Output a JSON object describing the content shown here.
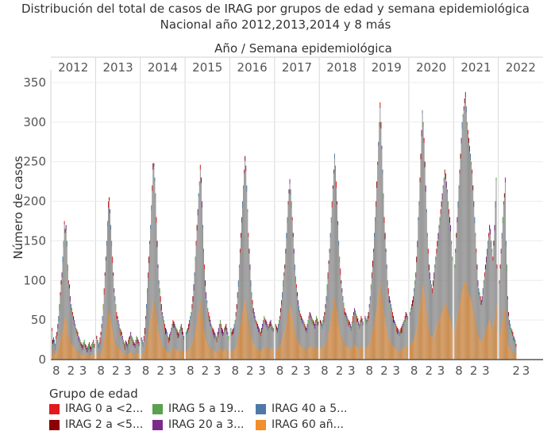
{
  "title_line1": "Distribución del total de casos de IRAG por grupos de edad y semana epidemiológica",
  "title_line2": "Nacional año 2012,2013,2014 y 8 más",
  "header_label": "Año / Semana epidemiológica",
  "legend_title": "Grupo de edad",
  "legend": [
    {
      "label": "IRAG 0 a <2...",
      "color": "#e31a1c"
    },
    {
      "label": "IRAG 2 a <5...",
      "color": "#8b0000"
    },
    {
      "label": "IRAG 5 a 19...",
      "color": "#59a14f"
    },
    {
      "label": "IRAG 20 a 3...",
      "color": "#7b2a8c"
    },
    {
      "label": "IRAG 40 a 5...",
      "color": "#4e79a7"
    },
    {
      "label": "IRAG 60 añ...",
      "color": "#f28e2b"
    }
  ],
  "chart_data": {
    "type": "bar",
    "stacked": true,
    "ylabel": "Número de casos",
    "xlabel": "Año / Semana epidemiológica",
    "ylim": [
      0,
      360
    ],
    "yticks": [
      0,
      50,
      100,
      150,
      200,
      250,
      300,
      350
    ],
    "grid": true,
    "years": [
      "2012",
      "2013",
      "2014",
      "2015",
      "2016",
      "2017",
      "2018",
      "2019",
      "2020",
      "2021",
      "2022"
    ],
    "bottom_tick_labels": [
      "8",
      "2",
      "3",
      "8",
      "2",
      "3",
      "8",
      "2",
      "3",
      "8",
      "2",
      "3",
      "8",
      "2",
      "3",
      "8",
      "2",
      "3",
      "8",
      "2",
      "3",
      "8",
      "2",
      "3",
      "8",
      "2",
      "3",
      "8",
      "2",
      "3",
      "2",
      "3"
    ],
    "series_colors": {
      "grey_total": "#8c8c8c",
      "IRAG 0 a <2": "#e31a1c",
      "IRAG 2 a <5": "#8b0000",
      "IRAG 60 años y más": "#f28e2b",
      "IRAG 40 a 59": "#4e79a7",
      "IRAG 20 a 39": "#7b2a8c",
      "IRAG 5 a 19": "#59a14f"
    },
    "weekly_totals": {
      "2012": [
        40,
        25,
        28,
        25,
        20,
        30,
        35,
        45,
        55,
        70,
        85,
        100,
        110,
        130,
        150,
        175,
        165,
        170,
        150,
        120,
        100,
        95,
        80,
        70,
        65,
        60,
        55,
        50,
        45,
        40,
        38,
        35,
        30,
        28,
        25,
        22,
        20,
        18,
        22,
        25,
        20,
        18,
        15,
        17,
        20,
        22,
        18,
        16,
        20,
        22,
        25,
        20
      ],
      "2013": [
        30,
        25,
        20,
        22,
        28,
        35,
        45,
        55,
        70,
        90,
        110,
        130,
        150,
        175,
        200,
        205,
        190,
        170,
        150,
        130,
        110,
        90,
        80,
        70,
        60,
        55,
        50,
        45,
        40,
        38,
        35,
        30,
        25,
        22,
        20,
        24,
        22,
        20,
        25,
        28,
        30,
        35,
        30,
        28,
        25,
        22,
        20,
        25,
        30,
        28,
        25,
        22
      ],
      "2014": [
        28,
        25,
        22,
        30,
        40,
        55,
        70,
        90,
        110,
        130,
        150,
        170,
        195,
        220,
        248,
        248,
        230,
        210,
        180,
        150,
        120,
        100,
        90,
        80,
        70,
        60,
        55,
        50,
        45,
        40,
        38,
        35,
        30,
        28,
        32,
        35,
        40,
        45,
        50,
        48,
        45,
        42,
        40,
        38,
        35,
        33,
        38,
        42,
        45,
        40,
        35,
        30
      ],
      "2015": [
        35,
        38,
        40,
        45,
        50,
        55,
        60,
        70,
        80,
        95,
        110,
        130,
        150,
        170,
        190,
        210,
        225,
        246,
        230,
        200,
        170,
        140,
        120,
        100,
        85,
        75,
        65,
        60,
        55,
        50,
        45,
        42,
        40,
        38,
        35,
        33,
        30,
        28,
        35,
        40,
        45,
        50,
        45,
        40,
        38,
        35,
        40,
        42,
        45,
        40,
        35,
        30
      ],
      "2016": [
        40,
        35,
        38,
        40,
        45,
        50,
        60,
        70,
        85,
        100,
        120,
        140,
        160,
        180,
        200,
        220,
        240,
        257,
        245,
        220,
        190,
        160,
        140,
        120,
        100,
        85,
        75,
        65,
        60,
        55,
        50,
        48,
        45,
        42,
        40,
        38,
        35,
        40,
        45,
        50,
        55,
        52,
        50,
        48,
        45,
        42,
        45,
        48,
        50,
        45,
        42,
        40
      ],
      "2017": [
        45,
        42,
        40,
        45,
        50,
        55,
        65,
        75,
        85,
        100,
        110,
        120,
        140,
        160,
        180,
        200,
        215,
        228,
        215,
        200,
        180,
        160,
        140,
        120,
        105,
        95,
        85,
        75,
        68,
        62,
        58,
        55,
        52,
        50,
        48,
        45,
        42,
        40,
        45,
        50,
        55,
        60,
        58,
        55,
        52,
        50,
        48,
        45,
        50,
        55,
        52,
        48
      ],
      "2018": [
        50,
        48,
        45,
        50,
        55,
        60,
        70,
        80,
        95,
        110,
        125,
        140,
        160,
        180,
        200,
        220,
        240,
        260,
        245,
        225,
        200,
        175,
        150,
        130,
        115,
        100,
        90,
        80,
        72,
        65,
        60,
        58,
        55,
        52,
        50,
        48,
        45,
        42,
        48,
        55,
        60,
        65,
        62,
        58,
        55,
        52,
        48,
        45,
        50,
        55,
        52,
        48
      ],
      "2019": [
        55,
        52,
        50,
        55,
        60,
        70,
        80,
        95,
        110,
        125,
        140,
        160,
        180,
        200,
        225,
        250,
        275,
        300,
        325,
        300,
        270,
        240,
        210,
        180,
        160,
        140,
        120,
        100,
        90,
        80,
        75,
        70,
        65,
        60,
        55,
        50,
        48,
        45,
        42,
        40,
        38,
        35,
        38,
        40,
        42,
        45,
        48,
        50,
        55,
        60,
        58,
        55
      ],
      "2020": [
        60,
        65,
        70,
        75,
        80,
        90,
        100,
        110,
        130,
        150,
        180,
        200,
        230,
        260,
        290,
        315,
        300,
        280,
        250,
        220,
        190,
        160,
        140,
        120,
        110,
        100,
        95,
        90,
        100,
        110,
        120,
        130,
        140,
        150,
        160,
        170,
        180,
        190,
        200,
        210,
        220,
        230,
        240,
        235,
        225,
        215,
        200,
        190,
        180,
        170,
        150,
        130
      ],
      "2021": [
        120,
        140,
        160,
        180,
        200,
        220,
        240,
        260,
        280,
        300,
        310,
        320,
        330,
        338,
        320,
        300,
        290,
        280,
        270,
        260,
        250,
        240,
        220,
        200,
        180,
        160,
        140,
        120,
        100,
        90,
        85,
        80,
        75,
        80,
        90,
        100,
        110,
        120,
        130,
        140,
        150,
        160,
        170,
        165,
        150,
        140,
        130,
        150,
        170,
        200,
        230,
        120
      ],
      "2022": [
        100,
        120,
        140,
        160,
        180,
        200,
        210,
        230,
        150,
        120,
        80,
        60,
        50,
        45,
        40,
        38,
        35,
        30,
        28,
        25,
        20
      ]
    }
  }
}
